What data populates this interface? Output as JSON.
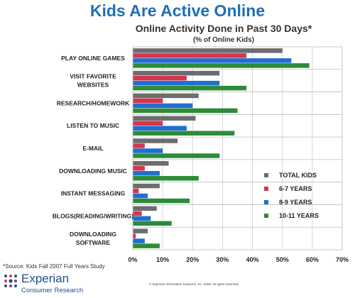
{
  "title": "Kids Are Active Online",
  "chart_data": {
    "type": "bar",
    "orientation": "horizontal",
    "title": "Online Activity Done in Past 30 Days*",
    "subtitle": "(% of Online Kids)",
    "categories": [
      "PLAY ONLINE GAMES",
      "VISIT FAVORITE WEBSITES",
      "RESEARCH/HOMEWORK",
      "LISTEN TO MUSIC",
      "E-MAIL",
      "DOWNLOADING MUSIC",
      "INSTANT MESSAGING",
      "BLOGS(READING/WRITING)",
      "DOWNLOADING SOFTWARE"
    ],
    "series": [
      {
        "name": "TOTAL KIDS",
        "color": "#6d6d6d",
        "values": [
          50,
          29,
          22,
          21,
          15,
          12,
          9,
          8,
          5
        ]
      },
      {
        "name": "6-7 YEARS",
        "color": "#d8344e",
        "values": [
          38,
          18,
          10,
          10,
          4,
          4,
          2,
          3,
          1
        ]
      },
      {
        "name": "8-9 YEARS",
        "color": "#1f6fd0",
        "values": [
          53,
          29,
          20,
          18,
          10,
          9,
          5,
          6,
          4
        ]
      },
      {
        "name": "10-11 YEARS",
        "color": "#2e8b3a",
        "values": [
          59,
          38,
          35,
          34,
          29,
          22,
          19,
          13,
          9
        ]
      }
    ],
    "xlim": [
      0,
      70
    ],
    "xticks": [
      "0%",
      "10%",
      "20%",
      "30%",
      "40%",
      "50%",
      "60%",
      "70%"
    ],
    "grid": true,
    "legend": "bottom-right"
  },
  "footer": {
    "source": "*Source:  Kids Fall 2007 Full Years Study",
    "copyright": "© Experian Information Solutions, Inc. 2008.  All rights reserved."
  },
  "logo": {
    "name": "Experian",
    "tagline": "Consumer Research",
    "icon": "experian-dots-icon"
  }
}
